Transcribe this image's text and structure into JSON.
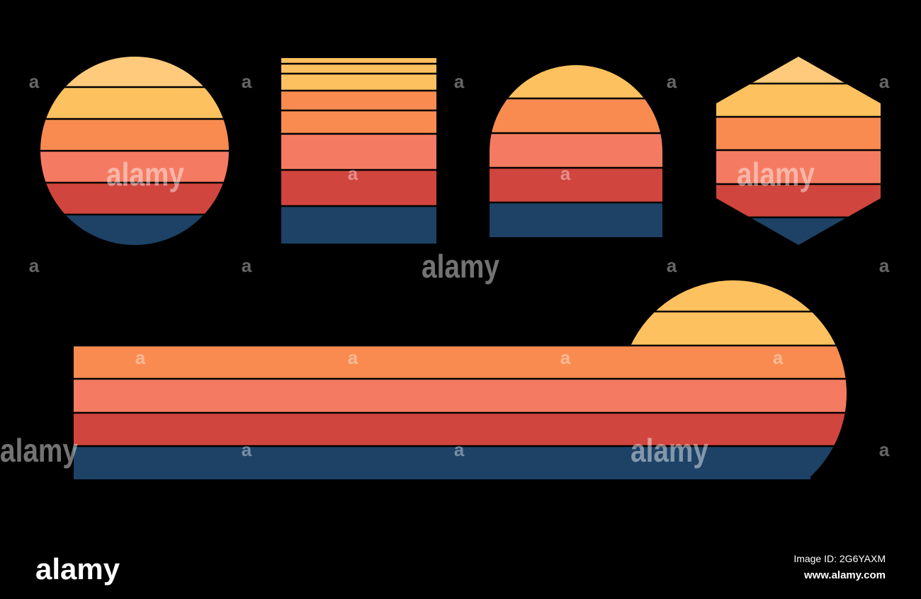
{
  "watermark": {
    "word": "alamy",
    "letter": "a"
  },
  "footer": {
    "logo": "alamy",
    "image_id": "Image ID: 2G6YAXM",
    "url": "www.alamy.com"
  }
}
